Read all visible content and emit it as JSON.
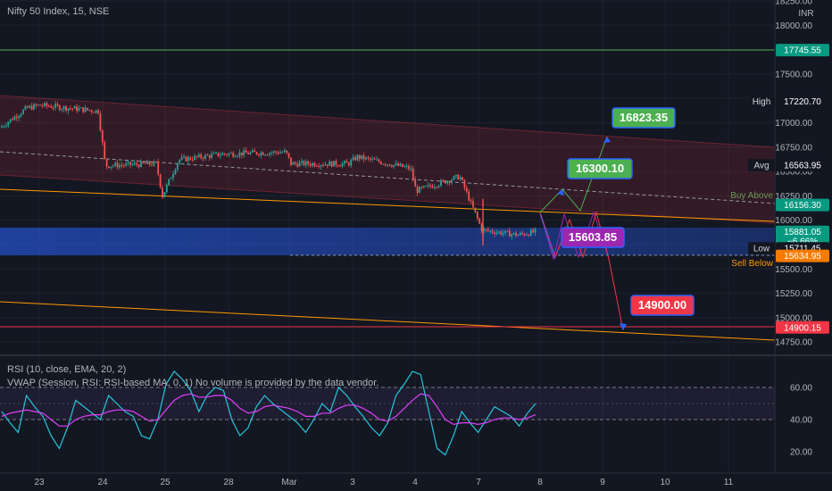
{
  "header": {
    "title": "Nifty 50 Index, 15, NSE"
  },
  "price_axis": {
    "currency": "INR"
  },
  "chart_data": [
    {
      "type": "candlestick",
      "title": "Nifty 50 Index, 15, NSE",
      "x_ticks": [
        "23",
        "24",
        "25",
        "28",
        "Mar",
        "3",
        "4",
        "7",
        "8",
        "9",
        "10",
        "11"
      ],
      "y_ticks": [
        18250,
        18000,
        17750,
        17500,
        17250,
        17000,
        16750,
        16500,
        16250,
        16000,
        15750,
        15500,
        15250,
        15000,
        14750
      ],
      "ylim": [
        14650,
        18300
      ],
      "approx_close_path": [
        {
          "x": "22",
          "y": 16950
        },
        {
          "x": "22",
          "y": 17150
        },
        {
          "x": "23",
          "y": 17180
        },
        {
          "x": "23",
          "y": 17120
        },
        {
          "x": "24",
          "y": 16560
        },
        {
          "x": "24",
          "y": 16580
        },
        {
          "x": "25",
          "y": 16250
        },
        {
          "x": "25",
          "y": 16620
        },
        {
          "x": "28",
          "y": 16680
        },
        {
          "x": "28",
          "y": 16700
        },
        {
          "x": "Mar",
          "y": 16580
        },
        {
          "x": "Mar",
          "y": 16580
        },
        {
          "x": "3",
          "y": 16650
        },
        {
          "x": "3",
          "y": 16530
        },
        {
          "x": "4",
          "y": 16300
        },
        {
          "x": "4",
          "y": 16450
        },
        {
          "x": "7",
          "y": 15900
        },
        {
          "x": "7",
          "y": 15850
        },
        {
          "x": "8",
          "y": 15881.05
        }
      ],
      "horizontal_levels": [
        {
          "price": 17745.55,
          "color": "#4caf50"
        },
        {
          "price": 14900.15,
          "color": "#f23645"
        }
      ],
      "price_labels": [
        {
          "value": "17745.55",
          "bg": "#089981"
        },
        {
          "name": "High",
          "value": "17220.70",
          "bg": "#131722"
        },
        {
          "name": "Avg",
          "value": "16563.95",
          "bg": "#131722"
        },
        {
          "value": "16156.30",
          "bg": "#089981"
        },
        {
          "value": "15881.05",
          "change": "−6.66%",
          "bg": "#089981"
        },
        {
          "name": "Low",
          "value": "15711.45",
          "bg": "#131722"
        },
        {
          "value": "15634.95",
          "bg": "#f57c00"
        },
        {
          "value": "14900.15",
          "bg": "#f23645"
        }
      ],
      "annotations": [
        {
          "text": "16823.35",
          "bg": "#4caf50"
        },
        {
          "text": "16300.10",
          "bg": "#4caf50"
        },
        {
          "text": "15603.85",
          "bg": "#9c27b0"
        },
        {
          "text": "14900.00",
          "bg": "#f23645"
        },
        {
          "text": "Buy Above",
          "color": "#6a9955"
        },
        {
          "text": "Sell Below",
          "color": "#ff9800"
        }
      ],
      "colors": {
        "up": "#26a69a",
        "down": "#ef5350",
        "channel_fill": "#f2364522",
        "zone_fill": "#2962ff55"
      }
    },
    {
      "type": "line",
      "title": "RSI (10, close, EMA, 20, 2)",
      "subtitle": "VWAP (Session, RSI: RSI-based MA, 0, 1)",
      "note": "No volume is provided by the data vendor.",
      "y_ticks": [
        60,
        40,
        20
      ],
      "ylim": [
        10,
        80
      ],
      "series": [
        {
          "name": "RSI",
          "color": "#26c6da",
          "values": [
            45,
            38,
            32,
            55,
            48,
            42,
            30,
            22,
            35,
            52,
            48,
            44,
            40,
            55,
            50,
            45,
            42,
            30,
            28,
            40,
            62,
            70,
            65,
            58,
            45,
            55,
            60,
            58,
            40,
            30,
            35,
            48,
            55,
            50,
            46,
            42,
            38,
            32,
            40,
            50,
            45,
            60,
            55,
            48,
            42,
            35,
            30,
            38,
            55,
            62,
            70,
            68,
            45,
            22,
            18,
            30,
            45,
            38,
            32,
            40,
            48,
            45,
            42,
            36,
            44,
            50
          ]
        },
        {
          "name": "RSI-based MA",
          "color": "#e040fb",
          "values": [
            42,
            44,
            45,
            46,
            45,
            44,
            40,
            36,
            36,
            40,
            42,
            43,
            43,
            45,
            46,
            46,
            45,
            42,
            39,
            40,
            46,
            52,
            55,
            56,
            54,
            54,
            55,
            55,
            52,
            47,
            44,
            45,
            48,
            49,
            48,
            47,
            45,
            42,
            42,
            44,
            44,
            47,
            49,
            49,
            47,
            44,
            40,
            39,
            42,
            47,
            52,
            56,
            55,
            48,
            40,
            37,
            38,
            38,
            37,
            38,
            40,
            41,
            41,
            40,
            41,
            43
          ]
        }
      ]
    }
  ]
}
